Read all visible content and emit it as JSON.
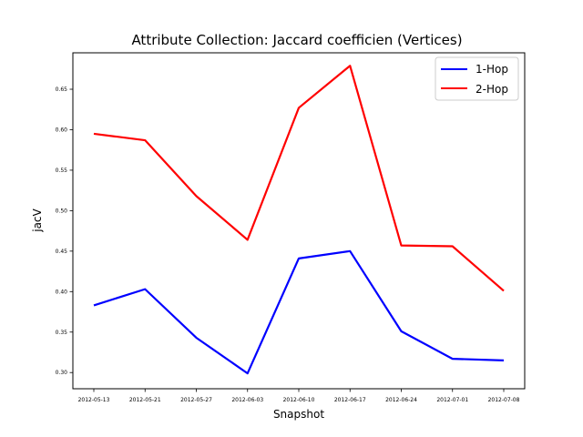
{
  "chart_data": {
    "type": "line",
    "title": "Attribute Collection:  Jaccard coefficien (Vertices)",
    "xlabel": "Snapshot",
    "ylabel": "jacV",
    "categories": [
      "2012-05-13",
      "2012-05-21",
      "2012-05-27",
      "2012-06-03",
      "2012-06-10",
      "2012-06-17",
      "2012-06-24",
      "2012-07-01",
      "2012-07-08"
    ],
    "ylim": [
      0.28,
      0.695
    ],
    "yticks": [
      "0.30",
      "0.35",
      "0.40",
      "0.45",
      "0.50",
      "0.55",
      "0.60",
      "0.65"
    ],
    "grid": false,
    "legend_position": "top-right",
    "series": [
      {
        "name": "1-Hop",
        "color": "#0000ff",
        "values": [
          0.383,
          0.403,
          0.343,
          0.299,
          0.441,
          0.45,
          0.351,
          0.317,
          0.315
        ]
      },
      {
        "name": "2-Hop",
        "color": "#ff0000",
        "values": [
          0.595,
          0.587,
          0.518,
          0.464,
          0.627,
          0.679,
          0.457,
          0.456,
          0.401
        ]
      }
    ]
  }
}
